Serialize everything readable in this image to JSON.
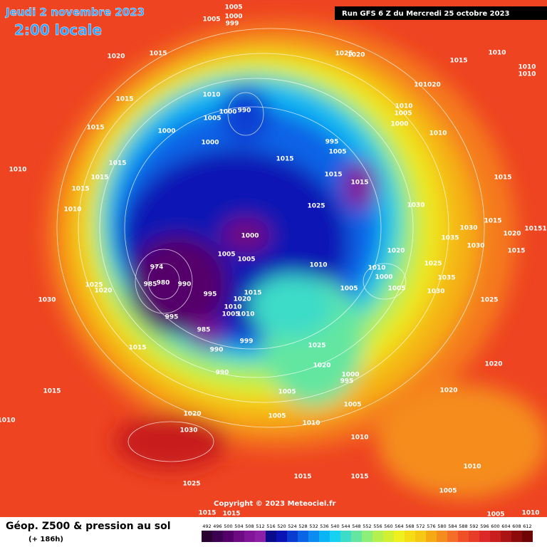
{
  "header": {
    "date": "Jeudi 2 novembre 2023",
    "time": "2:00 locale",
    "run": "Run GFS 6 Z du Mercredi 25 octobre 2023"
  },
  "copyright": "Copyright © 2023 Meteociel.fr",
  "footer": {
    "title": "Géop. Z500 & pression au sol",
    "lead": "(+ 186h)"
  },
  "scale": {
    "values": [
      492,
      496,
      500,
      504,
      508,
      512,
      516,
      520,
      524,
      528,
      532,
      536,
      540,
      544,
      548,
      552,
      556,
      560,
      564,
      568,
      572,
      576,
      580,
      584,
      588,
      592,
      596,
      600,
      604,
      608,
      612
    ],
    "colors": [
      "#2a0030",
      "#3c0050",
      "#55006a",
      "#6e0a82",
      "#82149a",
      "#8c1ea8",
      "#0a0a8c",
      "#0a14b4",
      "#0a3cd2",
      "#0a64e6",
      "#0a8cf0",
      "#0ab4f5",
      "#14d2f0",
      "#3cdcc8",
      "#64e6a0",
      "#8cf078",
      "#b4f050",
      "#d2f032",
      "#f0f01e",
      "#f5dc14",
      "#f5c814",
      "#f5aa14",
      "#f58c1e",
      "#f56e28",
      "#f05028",
      "#e63c28",
      "#dc2828",
      "#c81e1e",
      "#aa1414",
      "#8c0a0a",
      "#6e0505"
    ]
  },
  "isobar_labels": [
    1005,
    1000,
    999,
    1005,
    1020,
    1015,
    1020,
    1025,
    1010,
    1015,
    1010,
    1010,
    1015,
    1010,
    1005,
    1000,
    990,
    101020,
    1010,
    1005,
    1000,
    1010,
    1015,
    1000,
    1000,
    995,
    1005,
    1015,
    1015,
    1015,
    1015,
    1015,
    1010,
    1015,
    1015,
    1025,
    1030,
    1010,
    1015,
    1030,
    1020,
    1035,
    1030,
    10151,
    1000,
    1005,
    1005,
    1020,
    1015,
    1010,
    1025,
    1010,
    974,
    1000,
    1035,
    985,
    980,
    990,
    1025,
    1020,
    1005,
    1005,
    1030,
    1015,
    995,
    1020,
    1030,
    1025,
    1010,
    1005,
    1010,
    995,
    985,
    999,
    990,
    1015,
    1025,
    1020,
    990,
    1000,
    995,
    1020,
    1005,
    1020,
    1015,
    1005,
    1020,
    1005,
    1010,
    1010,
    1030,
    1010,
    1010,
    1015,
    1015,
    1025,
    1005,
    1015,
    1015,
    1005,
    1010
  ]
}
